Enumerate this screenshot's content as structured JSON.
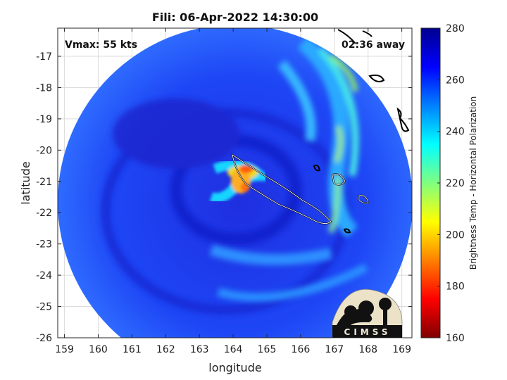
{
  "chart_data": {
    "type": "heatmap",
    "title": "Fili: 06-Apr-2022 14:30:00",
    "xlabel": "longitude",
    "ylabel": "latitude",
    "xlim": [
      158.8,
      169.3
    ],
    "ylim": [
      -26,
      -16.1
    ],
    "x_ticks": [
      159,
      160,
      161,
      162,
      163,
      164,
      165,
      166,
      167,
      168,
      169
    ],
    "y_ticks": [
      -17,
      -18,
      -19,
      -20,
      -21,
      -22,
      -23,
      -24,
      -25,
      -26
    ],
    "grid": true,
    "annotations": {
      "vmax": "Vmax: 55 kts",
      "time_away": "02:36 away"
    },
    "colorbar": {
      "label": "Brightness Temp - Horizontal Polarization",
      "min": 160,
      "max": 280,
      "ticks": [
        160,
        180,
        200,
        220,
        240,
        260,
        280
      ],
      "colormap": [
        "#800000",
        "#ff0000",
        "#ff8000",
        "#ffff00",
        "#80ff80",
        "#00ffff",
        "#0080ff",
        "#0000ff",
        "#00008f"
      ]
    },
    "swath": {
      "center_lon": 163.7,
      "center_lat": -21.5,
      "radius_deg": 4.6
    },
    "cold_cores_K": [
      {
        "lon": 164.4,
        "lat": -20.6,
        "value": 190
      },
      {
        "lon": 164.1,
        "lat": -21.2,
        "value": 200
      }
    ]
  },
  "logo": {
    "text": "CIMSS"
  }
}
